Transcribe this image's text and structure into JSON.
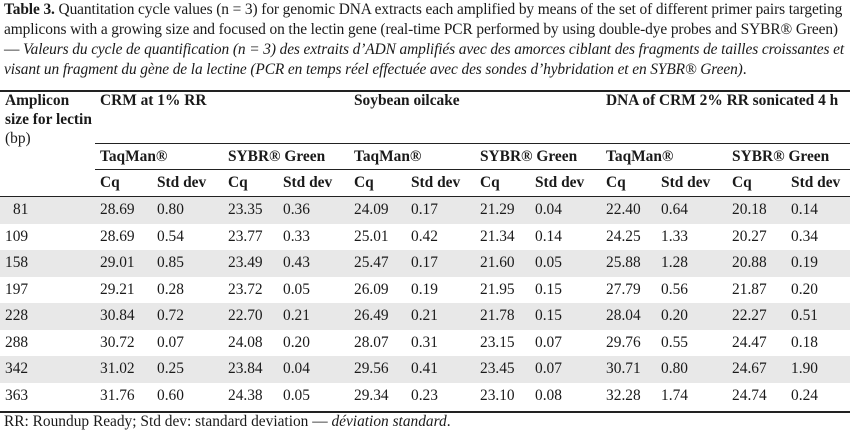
{
  "caption": {
    "label": "Table 3.",
    "text_en": " Quantitation cycle values (n = 3) for genomic DNA extracts each amplified by means of the set of different primer pairs targeting amplicons with a growing size and focused on the lectin gene (real-time PCR performed by using double-dye probes and SYBR® Green) — ",
    "text_fr": "Valeurs du cycle de quantification (n = 3) des extraits d’ADN amplifiés avec des amorces ciblant des fragments de tailles croissantes et visant un fragment du gène de la lectine (PCR en temps réel effectuée avec des sondes d’hybridation et en SYBR® Green)",
    "end": "."
  },
  "table": {
    "col_amplicon_bold": "Amplicon size for lectin",
    "col_amplicon_unit": "(bp)",
    "groups": [
      "CRM at 1% RR",
      "Soybean oilcake",
      "DNA of CRM 2% RR sonicated 4 h"
    ],
    "methods": [
      "TaqMan®",
      "SYBR® Green"
    ],
    "stats": [
      "Cq",
      "Std dev"
    ],
    "rows": [
      {
        "size": "81",
        "v": [
          "28.69",
          "0.80",
          "23.35",
          "0.36",
          "24.09",
          "0.17",
          "21.29",
          "0.04",
          "22.40",
          "0.64",
          "20.18",
          "0.14"
        ]
      },
      {
        "size": "109",
        "v": [
          "28.69",
          "0.54",
          "23.77",
          "0.33",
          "25.01",
          "0.42",
          "21.34",
          "0.14",
          "24.25",
          "1.33",
          "20.27",
          "0.34"
        ]
      },
      {
        "size": "158",
        "v": [
          "29.01",
          "0.85",
          "23.49",
          "0.43",
          "25.47",
          "0.17",
          "21.60",
          "0.05",
          "25.88",
          "1.28",
          "20.88",
          "0.19"
        ]
      },
      {
        "size": "197",
        "v": [
          "29.21",
          "0.28",
          "23.72",
          "0.05",
          "26.09",
          "0.19",
          "21.95",
          "0.15",
          "27.79",
          "0.56",
          "21.87",
          "0.20"
        ]
      },
      {
        "size": "228",
        "v": [
          "30.84",
          "0.72",
          "22.70",
          "0.21",
          "26.49",
          "0.21",
          "21.78",
          "0.15",
          "28.04",
          "0.20",
          "22.27",
          "0.51"
        ]
      },
      {
        "size": "288",
        "v": [
          "30.72",
          "0.07",
          "24.08",
          "0.20",
          "28.07",
          "0.31",
          "23.15",
          "0.07",
          "29.76",
          "0.55",
          "24.47",
          "0.18"
        ]
      },
      {
        "size": "342",
        "v": [
          "31.02",
          "0.25",
          "23.84",
          "0.04",
          "29.56",
          "0.41",
          "23.45",
          "0.07",
          "30.71",
          "0.80",
          "24.67",
          "1.90"
        ]
      },
      {
        "size": "363",
        "v": [
          "31.76",
          "0.60",
          "24.38",
          "0.05",
          "29.34",
          "0.23",
          "23.10",
          "0.08",
          "32.28",
          "1.74",
          "24.74",
          "0.24"
        ]
      }
    ]
  },
  "footnote": {
    "text": "RR: Roundup Ready; Std dev: standard deviation — ",
    "text_fr": "déviation standard",
    "end": "."
  }
}
